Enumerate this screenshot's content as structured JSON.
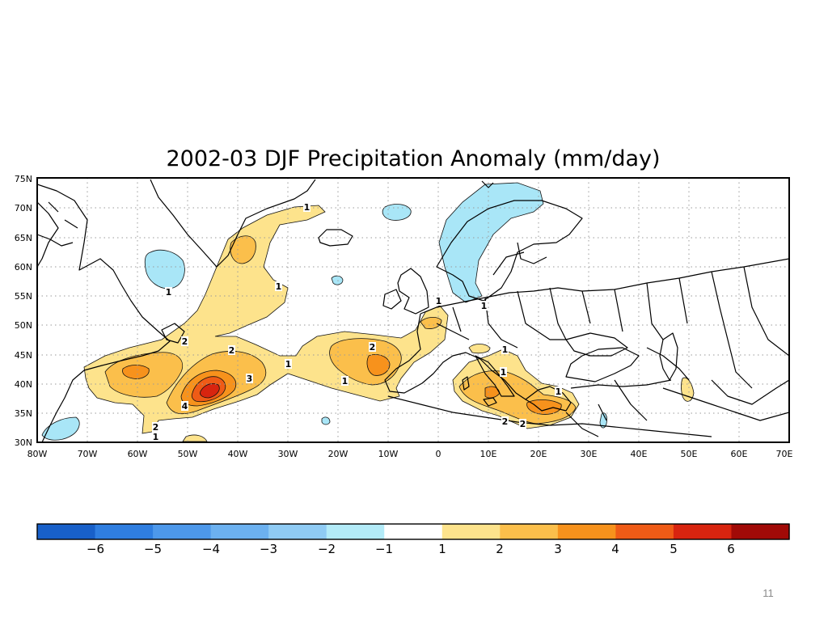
{
  "slide": {
    "title": "2002-03 DJF Precipitation Anomaly (mm/day)",
    "page_number": "11"
  },
  "map": {
    "lat_ticks": [
      "75N",
      "70N",
      "65N",
      "60N",
      "55N",
      "50N",
      "45N",
      "40N",
      "35N",
      "30N"
    ],
    "lon_ticks": [
      "80W",
      "70W",
      "60W",
      "50W",
      "40W",
      "30W",
      "20W",
      "10W",
      "0",
      "10E",
      "20E",
      "30E",
      "40E",
      "50E",
      "60E",
      "70E"
    ],
    "contour_labels": [
      "1",
      "1",
      "1",
      "1",
      "1",
      "1",
      "1",
      "1",
      "1",
      "1",
      "1",
      "2",
      "2",
      "2",
      "2",
      "2",
      "2",
      "3",
      "4"
    ],
    "colors": {
      "positive": [
        "#fde38c",
        "#fbbf4b",
        "#f7921c",
        "#ef5b16",
        "#d8240f"
      ],
      "negative": [
        "#a9e6f7"
      ]
    }
  },
  "colorbar": {
    "labels": [
      "−6",
      "−5",
      "−4",
      "−3",
      "−2",
      "−1",
      "1",
      "2",
      "3",
      "4",
      "5",
      "6"
    ],
    "colors": [
      "#1860c9",
      "#2f7ee0",
      "#4d98ea",
      "#6cb1f0",
      "#8fcbf4",
      "#b3ebf8",
      "#ffffff",
      "#fde38c",
      "#fbbf4b",
      "#f7921c",
      "#ef5b16",
      "#d8240f",
      "#a10a07"
    ]
  }
}
